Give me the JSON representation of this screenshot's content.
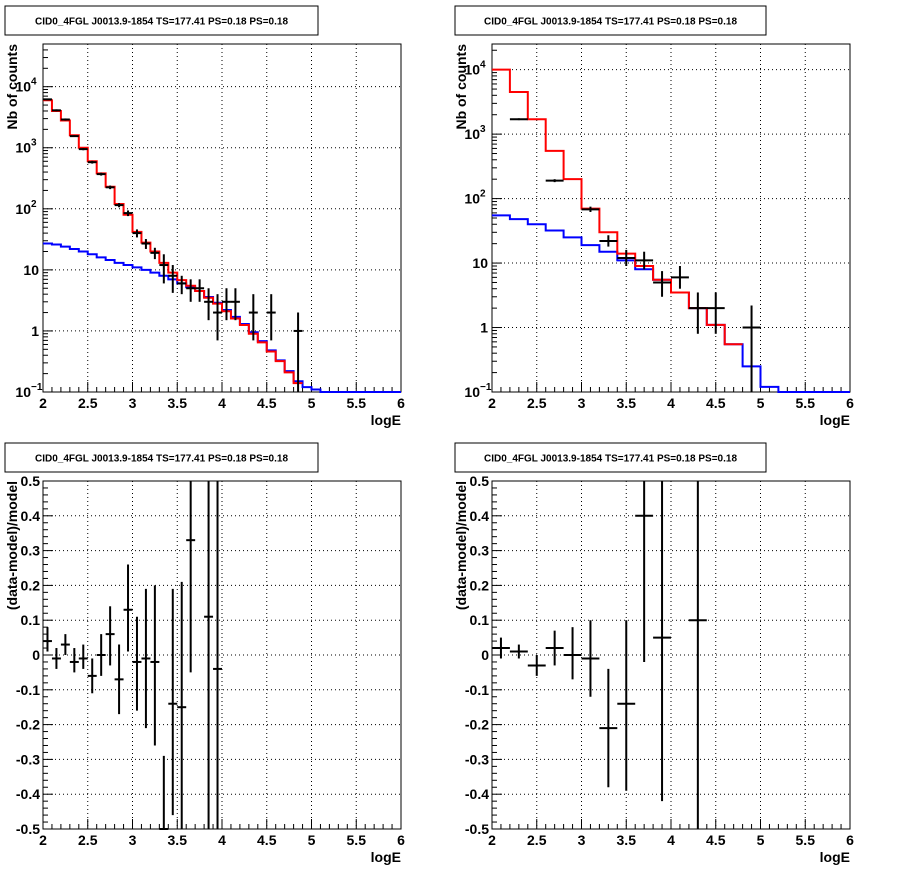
{
  "colors": {
    "data": "#000000",
    "total_model": "#ff0000",
    "background_model": "#0000ff"
  },
  "chart_data": [
    {
      "id": "top-left",
      "type": "line",
      "title": "CID0_4FGL J0013.9-1854 TS=177.41 PS=0.18 PS=0.18",
      "xlabel": "logE",
      "ylabel": "Nb of counts",
      "yscale": "log",
      "xlim": [
        2,
        6
      ],
      "ylim": [
        0.1,
        50000
      ],
      "grid": true,
      "x_ticks": [
        "2",
        "2.5",
        "3",
        "3.5",
        "4",
        "4.5",
        "5",
        "5.5",
        "6"
      ],
      "series": [
        {
          "kind": "step",
          "color_key": "background_model",
          "edges": [
            2.0,
            2.1,
            2.2,
            2.3,
            2.4,
            2.5,
            2.6,
            2.7,
            2.8,
            2.9,
            3.0,
            3.1,
            3.2,
            3.3,
            3.4,
            3.5,
            3.6,
            3.7,
            3.8,
            3.9,
            4.0,
            4.1,
            4.2,
            4.3,
            4.4,
            4.5,
            4.6,
            4.7,
            4.8,
            4.9,
            5.0,
            5.1,
            6.0
          ],
          "values": [
            27,
            26,
            24,
            22,
            20,
            18,
            16,
            14.5,
            13,
            12,
            11,
            10,
            9,
            8,
            7,
            6,
            5.2,
            4.5,
            3.6,
            2.9,
            2.2,
            1.7,
            1.3,
            0.95,
            0.68,
            0.48,
            0.33,
            0.22,
            0.15,
            0.12,
            0.11,
            0.1
          ]
        },
        {
          "kind": "step",
          "color_key": "total_model",
          "edges": [
            2.0,
            2.1,
            2.2,
            2.3,
            2.4,
            2.5,
            2.6,
            2.7,
            2.8,
            2.9,
            3.0,
            3.1,
            3.2,
            3.3,
            3.4,
            3.5,
            3.6,
            3.7,
            3.8,
            3.9,
            4.0,
            4.1,
            4.2,
            4.3,
            4.4,
            4.5,
            4.6,
            4.7,
            4.8,
            4.9
          ],
          "values": [
            6000,
            4000,
            2800,
            1600,
            1000,
            600,
            380,
            230,
            120,
            80,
            42,
            28,
            20,
            13,
            9,
            6.8,
            5.5,
            4.5,
            3.5,
            2.8,
            2.1,
            1.6,
            1.25,
            0.9,
            0.65,
            0.46,
            0.32,
            0.21,
            0.14
          ]
        },
        {
          "kind": "points",
          "color_key": "data",
          "x": [
            2.05,
            2.15,
            2.25,
            2.35,
            2.45,
            2.55,
            2.65,
            2.75,
            2.85,
            2.95,
            3.05,
            3.15,
            3.25,
            3.35,
            3.45,
            3.55,
            3.65,
            3.75,
            3.85,
            3.95,
            4.05,
            4.15,
            4.35,
            4.55,
            4.85
          ],
          "y": [
            6200,
            4100,
            2900,
            1550,
            950,
            580,
            370,
            225,
            115,
            85,
            40,
            27,
            19,
            12,
            8,
            6,
            5,
            5,
            3,
            2,
            3,
            3,
            2,
            2,
            1
          ],
          "xerr": 0.05,
          "ylow": [
            6000,
            3950,
            2780,
            1500,
            910,
            550,
            350,
            210,
            106,
            76,
            34,
            22,
            15,
            6,
            4.2,
            4,
            3,
            3,
            1.5,
            0.7,
            1.5,
            1.5,
            0.7,
            0.7,
            0.1
          ],
          "yhigh": [
            6400,
            4250,
            3020,
            1600,
            990,
            610,
            390,
            240,
            124,
            94,
            46,
            32,
            23,
            18,
            12,
            8,
            7,
            7,
            5,
            4,
            5,
            5,
            4,
            4,
            2
          ]
        }
      ]
    },
    {
      "id": "top-right",
      "type": "line",
      "title": "CID0_4FGL J0013.9-1854 TS=177.41 PS=0.18 PS=0.18",
      "xlabel": "logE",
      "ylabel": "Nb of counts",
      "yscale": "log",
      "xlim": [
        2,
        6
      ],
      "ylim": [
        0.1,
        25000
      ],
      "grid": true,
      "x_ticks": [
        "2",
        "2.5",
        "3",
        "3.5",
        "4",
        "4.5",
        "5",
        "5.5",
        "6"
      ],
      "series": [
        {
          "kind": "step",
          "color_key": "background_model",
          "edges": [
            2.0,
            2.2,
            2.4,
            2.6,
            2.8,
            3.0,
            3.2,
            3.4,
            3.6,
            3.8,
            4.0,
            4.2,
            4.4,
            4.6,
            4.8,
            5.0,
            5.2,
            5.4,
            6.0
          ],
          "values": [
            55,
            48,
            40,
            32,
            25,
            19,
            15,
            11,
            8,
            5.5,
            3.5,
            2,
            1.1,
            0.55,
            0.25,
            0.12,
            0.1,
            0.1
          ]
        },
        {
          "kind": "step",
          "color_key": "total_model",
          "edges": [
            2.0,
            2.2,
            2.4,
            2.6,
            2.8,
            3.0,
            3.2,
            3.4,
            3.6,
            3.8,
            4.0,
            4.2,
            4.4,
            4.6,
            4.8
          ],
          "values": [
            10000,
            4500,
            1700,
            550,
            200,
            70,
            30,
            14,
            9,
            5.5,
            3.5,
            2,
            1.1,
            0.55
          ]
        },
        {
          "kind": "points",
          "color_key": "data",
          "x": [
            2.3,
            2.7,
            3.1,
            3.3,
            3.5,
            3.7,
            3.9,
            4.1,
            4.3,
            4.5,
            4.9
          ],
          "y": [
            1700,
            190,
            68,
            22,
            12,
            11,
            5,
            6,
            2,
            2,
            1
          ],
          "xerr": 0.1,
          "ylow": [
            1650,
            180,
            62,
            18,
            9,
            8,
            3,
            4,
            0.8,
            0.8,
            0.1
          ],
          "yhigh": [
            1760,
            200,
            75,
            27,
            16,
            15,
            7.5,
            9,
            3.5,
            3.5,
            2.2
          ]
        }
      ]
    },
    {
      "id": "bottom-left",
      "type": "scatter",
      "title": "CID0_4FGL J0013.9-1854 TS=177.41 PS=0.18 PS=0.18",
      "xlabel": "logE",
      "ylabel": "(data-model)/model",
      "xlim": [
        2,
        6
      ],
      "ylim": [
        -0.5,
        0.5
      ],
      "grid": true,
      "x_ticks": [
        "2",
        "2.5",
        "3",
        "3.5",
        "4",
        "4.5",
        "5",
        "5.5",
        "6"
      ],
      "y_ticks": [
        "-0.5",
        "-0.4",
        "-0.3",
        "-0.2",
        "-0.1",
        "0",
        "0.1",
        "0.2",
        "0.3",
        "0.4",
        "0.5"
      ],
      "series": [
        {
          "kind": "points",
          "color_key": "data",
          "x": [
            2.05,
            2.15,
            2.25,
            2.35,
            2.45,
            2.55,
            2.65,
            2.75,
            2.85,
            2.95,
            3.05,
            3.15,
            3.25,
            3.35,
            3.45,
            3.55,
            3.65,
            3.85,
            3.95
          ],
          "y": [
            0.04,
            -0.01,
            0.03,
            -0.02,
            -0.01,
            -0.06,
            0.0,
            0.06,
            -0.07,
            0.13,
            -0.02,
            -0.01,
            -0.02,
            -0.5,
            -0.14,
            -0.15,
            0.33,
            0.11,
            -0.04
          ],
          "xerr": 0.05,
          "ylow": [
            0.01,
            -0.04,
            0.0,
            -0.05,
            -0.04,
            -0.11,
            -0.06,
            -0.03,
            -0.17,
            0.01,
            -0.16,
            -0.21,
            -0.26,
            -0.5,
            -0.46,
            -0.5,
            -0.05,
            -0.5,
            -0.5
          ],
          "yhigh": [
            0.08,
            0.02,
            0.06,
            0.02,
            0.03,
            -0.01,
            0.06,
            0.14,
            0.03,
            0.26,
            0.11,
            0.19,
            0.2,
            -0.29,
            0.19,
            0.21,
            0.5,
            0.5,
            0.5
          ]
        }
      ]
    },
    {
      "id": "bottom-right",
      "type": "scatter",
      "title": "CID0_4FGL J0013.9-1854 TS=177.41 PS=0.18 PS=0.18",
      "xlabel": "logE",
      "ylabel": "(data-model)/model",
      "xlim": [
        2,
        6
      ],
      "ylim": [
        -0.5,
        0.5
      ],
      "grid": true,
      "x_ticks": [
        "2",
        "2.5",
        "3",
        "3.5",
        "4",
        "4.5",
        "5",
        "5.5",
        "6"
      ],
      "y_ticks": [
        "-0.5",
        "-0.4",
        "-0.3",
        "-0.2",
        "-0.1",
        "0",
        "0.1",
        "0.2",
        "0.3",
        "0.4",
        "0.5"
      ],
      "series": [
        {
          "kind": "points",
          "color_key": "data",
          "x": [
            2.1,
            2.3,
            2.5,
            2.7,
            2.9,
            3.1,
            3.3,
            3.5,
            3.7,
            3.9,
            4.3
          ],
          "y": [
            0.02,
            0.01,
            -0.03,
            0.02,
            0.0,
            -0.01,
            -0.21,
            -0.14,
            0.4,
            0.05,
            0.1
          ],
          "xerr": 0.1,
          "ylow": [
            -0.01,
            -0.01,
            -0.06,
            -0.03,
            -0.07,
            -0.12,
            -0.38,
            -0.39,
            -0.02,
            -0.42,
            -0.5
          ],
          "yhigh": [
            0.05,
            0.03,
            0.0,
            0.07,
            0.08,
            0.1,
            -0.04,
            0.1,
            0.5,
            0.5,
            0.5
          ]
        }
      ]
    }
  ]
}
